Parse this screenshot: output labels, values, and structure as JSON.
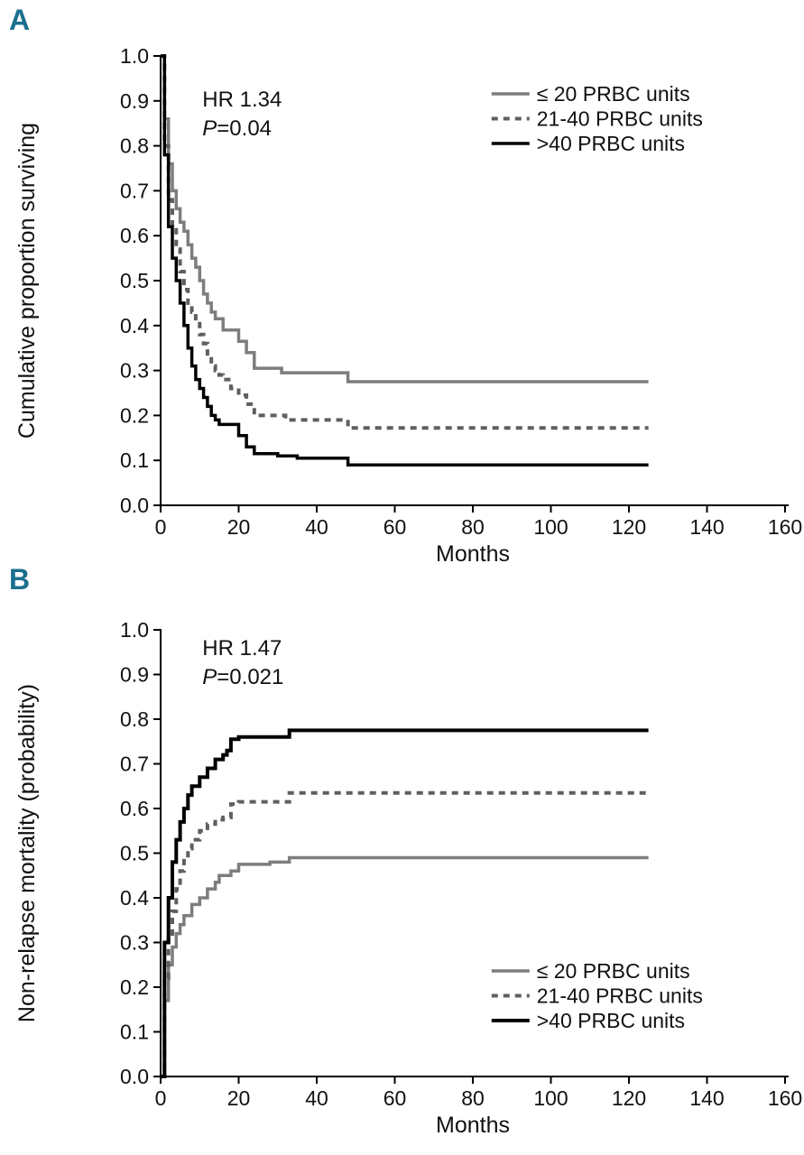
{
  "figure": {
    "background": "#ffffff",
    "panel_label_color": "#1b6f8e"
  },
  "panels": [
    {
      "label": "A",
      "chart_data": {
        "type": "line",
        "subtype": "kaplan-meier-step",
        "xlabel": "Months",
        "ylabel": "Cumulative proportion surviving",
        "xlim": [
          0,
          160
        ],
        "ylim": [
          0,
          1
        ],
        "xticks": [
          0,
          20,
          40,
          60,
          80,
          100,
          120,
          140,
          160
        ],
        "yticks": [
          0,
          0.1,
          0.2,
          0.3,
          0.4,
          0.5,
          0.6,
          0.7,
          0.8,
          0.9,
          1
        ],
        "grid": false,
        "legend_position": "top-right",
        "annotations": [
          {
            "x": 10.7,
            "y": 0.888,
            "italic_part": "",
            "text_part": "HR 1.34"
          },
          {
            "x": 10.7,
            "y": 0.823,
            "italic_part": "P",
            "text_part": "=0.04"
          }
        ],
        "series": [
          {
            "name": "≤ 20 PRBC units",
            "color": "#7d7d7d",
            "dash": "solid",
            "width": 3.5,
            "points": [
              [
                0,
                1.0
              ],
              [
                1,
                0.86
              ],
              [
                2,
                0.76
              ],
              [
                3,
                0.7
              ],
              [
                4,
                0.66
              ],
              [
                5,
                0.63
              ],
              [
                6,
                0.61
              ],
              [
                7,
                0.58
              ],
              [
                8,
                0.55
              ],
              [
                9,
                0.53
              ],
              [
                10,
                0.5
              ],
              [
                11,
                0.47
              ],
              [
                12,
                0.45
              ],
              [
                13,
                0.43
              ],
              [
                14,
                0.415
              ],
              [
                16,
                0.39
              ],
              [
                20,
                0.365
              ],
              [
                22,
                0.34
              ],
              [
                24,
                0.305
              ],
              [
                31,
                0.295
              ],
              [
                48,
                0.275
              ],
              [
                125,
                0.275
              ]
            ]
          },
          {
            "name": "21-40 PRBC units",
            "color": "#5f5f5f",
            "dash": "7 6",
            "width": 4,
            "points": [
              [
                0,
                1.0
              ],
              [
                1,
                0.8
              ],
              [
                2,
                0.68
              ],
              [
                3,
                0.62
              ],
              [
                4,
                0.57
              ],
              [
                5,
                0.52
              ],
              [
                6,
                0.48
              ],
              [
                7,
                0.45
              ],
              [
                8,
                0.43
              ],
              [
                9,
                0.41
              ],
              [
                10,
                0.38
              ],
              [
                11,
                0.36
              ],
              [
                12,
                0.33
              ],
              [
                13,
                0.31
              ],
              [
                14,
                0.3
              ],
              [
                15,
                0.29
              ],
              [
                16,
                0.28
              ],
              [
                18,
                0.26
              ],
              [
                20,
                0.245
              ],
              [
                22,
                0.225
              ],
              [
                24,
                0.2
              ],
              [
                32,
                0.19
              ],
              [
                48,
                0.172
              ],
              [
                125,
                0.172
              ]
            ]
          },
          {
            "name": ">40 PRBC units",
            "color": "#000000",
            "dash": "solid",
            "width": 3.5,
            "points": [
              [
                0,
                1.0
              ],
              [
                1,
                0.78
              ],
              [
                2,
                0.62
              ],
              [
                3,
                0.55
              ],
              [
                4,
                0.5
              ],
              [
                5,
                0.45
              ],
              [
                6,
                0.4
              ],
              [
                7,
                0.35
              ],
              [
                8,
                0.31
              ],
              [
                9,
                0.28
              ],
              [
                10,
                0.26
              ],
              [
                11,
                0.24
              ],
              [
                12,
                0.22
              ],
              [
                13,
                0.2
              ],
              [
                14,
                0.19
              ],
              [
                15,
                0.18
              ],
              [
                20,
                0.155
              ],
              [
                22,
                0.13
              ],
              [
                24,
                0.115
              ],
              [
                30,
                0.11
              ],
              [
                35,
                0.105
              ],
              [
                48,
                0.09
              ],
              [
                125,
                0.09
              ]
            ]
          }
        ]
      }
    },
    {
      "label": "B",
      "chart_data": {
        "type": "line",
        "subtype": "cumulative-incidence-step",
        "xlabel": "Months",
        "ylabel": "Non-relapse mortality (probability)",
        "xlim": [
          0,
          160
        ],
        "ylim": [
          0,
          1
        ],
        "xticks": [
          0,
          20,
          40,
          60,
          80,
          100,
          120,
          140,
          160
        ],
        "yticks": [
          0,
          0.1,
          0.2,
          0.3,
          0.4,
          0.5,
          0.6,
          0.7,
          0.8,
          0.9,
          1
        ],
        "grid": false,
        "legend_position": "bottom-right",
        "annotations": [
          {
            "x": 10.7,
            "y": 0.943,
            "italic_part": "",
            "text_part": "HR 1.47"
          },
          {
            "x": 10.7,
            "y": 0.879,
            "italic_part": "P",
            "text_part": "=0.021"
          }
        ],
        "series": [
          {
            "name": "≤ 20 PRBC units",
            "color": "#7d7d7d",
            "dash": "solid",
            "width": 3.5,
            "points": [
              [
                0,
                0
              ],
              [
                1,
                0.17
              ],
              [
                2,
                0.25
              ],
              [
                3,
                0.29
              ],
              [
                4,
                0.32
              ],
              [
                5,
                0.34
              ],
              [
                6,
                0.36
              ],
              [
                8,
                0.385
              ],
              [
                10,
                0.4
              ],
              [
                12,
                0.42
              ],
              [
                14,
                0.435
              ],
              [
                15,
                0.45
              ],
              [
                18,
                0.46
              ],
              [
                20,
                0.475
              ],
              [
                28,
                0.48
              ],
              [
                33,
                0.49
              ],
              [
                125,
                0.49
              ]
            ]
          },
          {
            "name": "21-40 PRBC units",
            "color": "#5f5f5f",
            "dash": "7 6",
            "width": 4,
            "points": [
              [
                0,
                0
              ],
              [
                1,
                0.22
              ],
              [
                2,
                0.31
              ],
              [
                3,
                0.37
              ],
              [
                4,
                0.42
              ],
              [
                5,
                0.46
              ],
              [
                6,
                0.49
              ],
              [
                7,
                0.51
              ],
              [
                8,
                0.53
              ],
              [
                10,
                0.55
              ],
              [
                12,
                0.565
              ],
              [
                14,
                0.575
              ],
              [
                16,
                0.58
              ],
              [
                18,
                0.61
              ],
              [
                20,
                0.615
              ],
              [
                33,
                0.635
              ],
              [
                125,
                0.635
              ]
            ]
          },
          {
            "name": ">40 PRBC units",
            "color": "#000000",
            "dash": "solid",
            "width": 4,
            "points": [
              [
                0,
                0
              ],
              [
                1,
                0.3
              ],
              [
                2,
                0.4
              ],
              [
                3,
                0.48
              ],
              [
                4,
                0.53
              ],
              [
                5,
                0.57
              ],
              [
                6,
                0.6
              ],
              [
                7,
                0.63
              ],
              [
                8,
                0.65
              ],
              [
                10,
                0.67
              ],
              [
                12,
                0.69
              ],
              [
                14,
                0.71
              ],
              [
                16,
                0.72
              ],
              [
                17,
                0.73
              ],
              [
                18,
                0.755
              ],
              [
                20,
                0.76
              ],
              [
                33,
                0.775
              ],
              [
                125,
                0.775
              ]
            ]
          }
        ]
      }
    }
  ]
}
